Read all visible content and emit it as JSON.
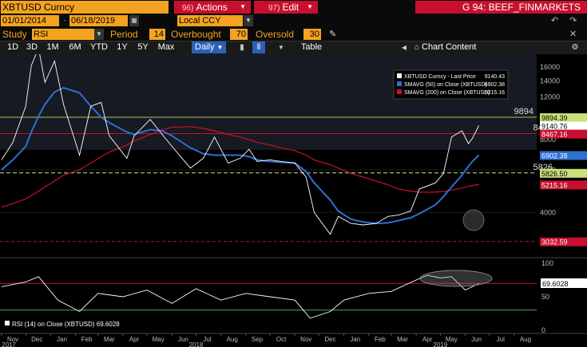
{
  "header": {
    "ticker": "XBTUSD Curncy",
    "actions_num": "96)",
    "actions_label": "Actions",
    "edit_num": "97)",
    "edit_label": "Edit",
    "page_title": "G 94: BEEF_FINMARKETS"
  },
  "range": {
    "start_date": "01/01/2014",
    "end_date": "06/18/2019",
    "currency": "Local CCY"
  },
  "study": {
    "study_label": "Study",
    "study_value": "RSI",
    "period_label": "Period",
    "period_value": "14",
    "overbought_label": "Overbought",
    "overbought_value": "70",
    "oversold_label": "Oversold",
    "oversold_value": "30"
  },
  "toolbar": {
    "periods": [
      "1D",
      "3D",
      "1M",
      "6M",
      "YTD",
      "1Y",
      "5Y",
      "Max"
    ],
    "frequency": "Daily",
    "table_label": "Table",
    "chart_content_label": "Chart Content"
  },
  "legend": {
    "items": [
      {
        "label": "XBTUSD Curncy - Last Price",
        "value": "9140.43",
        "color": "#ffffff"
      },
      {
        "label": "SMAVG (50) on Close (XBTUSD)",
        "value": "6902.38",
        "color": "#2f6fd0"
      },
      {
        "label": "SMAVG (200) on Close (XBTUSD)",
        "value": "5215.16",
        "color": "#c8102e"
      }
    ]
  },
  "annotations": {
    "level_9894": "9894",
    "level_8467": "8467",
    "level_5826": "5826"
  },
  "axis_badges": [
    {
      "text": "9894.39",
      "bg": "#c9e27a",
      "fg": "#000",
      "value": 9894.39
    },
    {
      "text": "9140.76",
      "bg": "#ffffff",
      "fg": "#000",
      "value": 9140.76
    },
    {
      "text": "8467.16",
      "bg": "#c8102e",
      "fg": "#fff",
      "value": 8467.16
    },
    {
      "text": "6902.38",
      "bg": "#2f6fd0",
      "fg": "#fff",
      "value": 6902.38
    },
    {
      "text": "5826.50",
      "bg": "#c9e27a",
      "fg": "#000",
      "value": 5826.5
    },
    {
      "text": "5215.16",
      "bg": "#c8102e",
      "fg": "#fff",
      "value": 5215.16
    },
    {
      "text": "3032.59",
      "bg": "#c8102e",
      "fg": "#fff",
      "value": 3032.59
    }
  ],
  "rsi": {
    "legend_label": "RSI (14) on Close (XBTUSD) 69.6028",
    "badge": "69.6028",
    "ticks": [
      "100",
      "50",
      "0"
    ]
  },
  "x_axis": {
    "months": [
      "Nov",
      "Dec",
      "Jan",
      "Feb",
      "Mar",
      "Apr",
      "May",
      "Jun",
      "Jul",
      "Aug",
      "Sep",
      "Oct",
      "Nov",
      "Dec",
      "Jan",
      "Feb",
      "Mar",
      "Apr",
      "May",
      "Jun",
      "Jul",
      "Aug"
    ],
    "years": [
      "2017",
      "2018",
      "2019"
    ]
  },
  "chart_data": [
    {
      "type": "line",
      "title": "",
      "ylabel": "",
      "scale": "log",
      "ylim": [
        2700,
        17500
      ],
      "y_ticks": [
        16000,
        14000,
        12000,
        10000,
        8000,
        6000,
        4000
      ],
      "x": [
        "2017-11-01",
        "2017-11-15",
        "2017-12-01",
        "2017-12-08",
        "2017-12-17",
        "2017-12-25",
        "2018-01-06",
        "2018-01-17",
        "2018-02-06",
        "2018-02-20",
        "2018-03-05",
        "2018-03-15",
        "2018-04-06",
        "2018-04-15",
        "2018-05-05",
        "2018-05-20",
        "2018-06-01",
        "2018-06-24",
        "2018-07-10",
        "2018-07-24",
        "2018-08-10",
        "2018-08-25",
        "2018-09-05",
        "2018-09-15",
        "2018-10-01",
        "2018-10-15",
        "2018-11-01",
        "2018-11-15",
        "2018-11-25",
        "2018-12-15",
        "2018-12-25",
        "2019-01-10",
        "2019-01-25",
        "2019-02-10",
        "2019-02-25",
        "2019-03-10",
        "2019-03-25",
        "2019-04-05",
        "2019-04-25",
        "2019-05-05",
        "2019-05-15",
        "2019-05-28",
        "2019-06-05",
        "2019-06-10",
        "2019-06-18"
      ],
      "series": [
        {
          "values": [
            6600,
            7800,
            11000,
            16200,
            19100,
            13800,
            16900,
            11200,
            6900,
            11000,
            11400,
            8300,
            6700,
            8300,
            9700,
            8400,
            7500,
            6100,
            6700,
            8200,
            6400,
            6700,
            7300,
            6500,
            6600,
            6500,
            6400,
            5600,
            4000,
            3250,
            3850,
            3600,
            3550,
            3600,
            3850,
            3900,
            4050,
            5000,
            5300,
            5800,
            8200,
            8700,
            7700,
            8100,
            9140
          ]
        },
        {
          "values": [
            6000,
            6600,
            7500,
            8600,
            10000,
            11200,
            12600,
            13100,
            12500,
            11000,
            9900,
            9400,
            8600,
            8400,
            8800,
            8700,
            8300,
            7400,
            7000,
            6900,
            6900,
            6900,
            6800,
            6600,
            6500,
            6450,
            6400,
            5900,
            5300,
            4500,
            4050,
            3750,
            3650,
            3600,
            3620,
            3700,
            3800,
            3950,
            4300,
            4650,
            5100,
            5700,
            6200,
            6500,
            6902
          ]
        },
        {
          "values": [
            4200,
            4350,
            4550,
            4700,
            4900,
            5100,
            5400,
            5700,
            6000,
            6400,
            6800,
            7100,
            7600,
            7900,
            8400,
            8800,
            9000,
            9050,
            8900,
            8700,
            8400,
            8200,
            8000,
            7800,
            7600,
            7400,
            7200,
            6900,
            6600,
            6300,
            6100,
            5800,
            5600,
            5400,
            5200,
            5000,
            4900,
            4850,
            4850,
            4880,
            4950,
            5050,
            5120,
            5170,
            5215
          ]
        }
      ]
    },
    {
      "type": "line",
      "title": "",
      "ylim": [
        0,
        100
      ],
      "y_ticks": [
        100,
        50,
        0
      ],
      "reference_lines": [
        70,
        30
      ],
      "x": [
        "2017-11-01",
        "2017-12-01",
        "2017-12-17",
        "2018-01-10",
        "2018-02-06",
        "2018-03-01",
        "2018-04-01",
        "2018-05-01",
        "2018-06-01",
        "2018-07-01",
        "2018-08-01",
        "2018-09-01",
        "2018-10-01",
        "2018-11-01",
        "2018-11-20",
        "2018-12-15",
        "2019-01-01",
        "2019-02-01",
        "2019-03-01",
        "2019-04-01",
        "2019-04-15",
        "2019-05-01",
        "2019-05-15",
        "2019-06-01",
        "2019-06-18"
      ],
      "series": [
        {
          "values": [
            65,
            72,
            80,
            45,
            28,
            55,
            50,
            60,
            40,
            62,
            45,
            55,
            50,
            45,
            18,
            28,
            45,
            55,
            58,
            75,
            82,
            78,
            80,
            60,
            69.6
          ]
        }
      ]
    }
  ]
}
